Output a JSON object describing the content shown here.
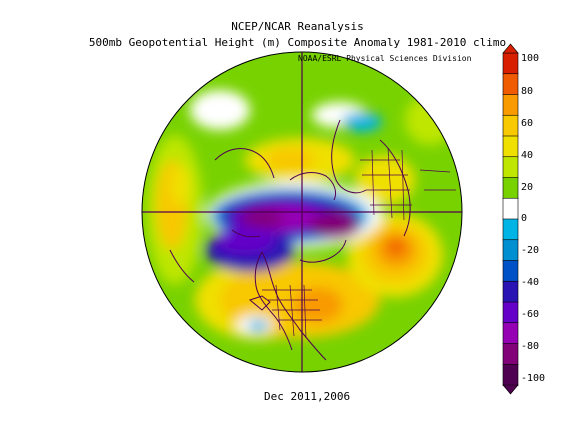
{
  "header": {
    "title": "NCEP/NCAR Reanalysis",
    "subtitle": "500mb Geopotential Height (m) Composite Anomaly 1981-2010 climo",
    "credit": "NOAA/ESRL Physical Sciences Division"
  },
  "footer": {
    "dates": "Dec 2011,2006"
  },
  "colorbar": {
    "labels": [
      "100",
      "80",
      "60",
      "40",
      "20",
      "0",
      "-20",
      "-40",
      "-60",
      "-80",
      "-100"
    ],
    "colors": [
      "#d82000",
      "#f05a00",
      "#f89a00",
      "#f8c800",
      "#f0e000",
      "#bee600",
      "#78d200",
      "#ffffff",
      "#00b4e6",
      "#0090d2",
      "#0050c8",
      "#2a14b4",
      "#6400c8",
      "#9600b4",
      "#820078",
      "#500050"
    ]
  },
  "map": {
    "projection": "north-polar-stereographic",
    "field": "500mb geopotential height anomaly",
    "units": "m"
  }
}
